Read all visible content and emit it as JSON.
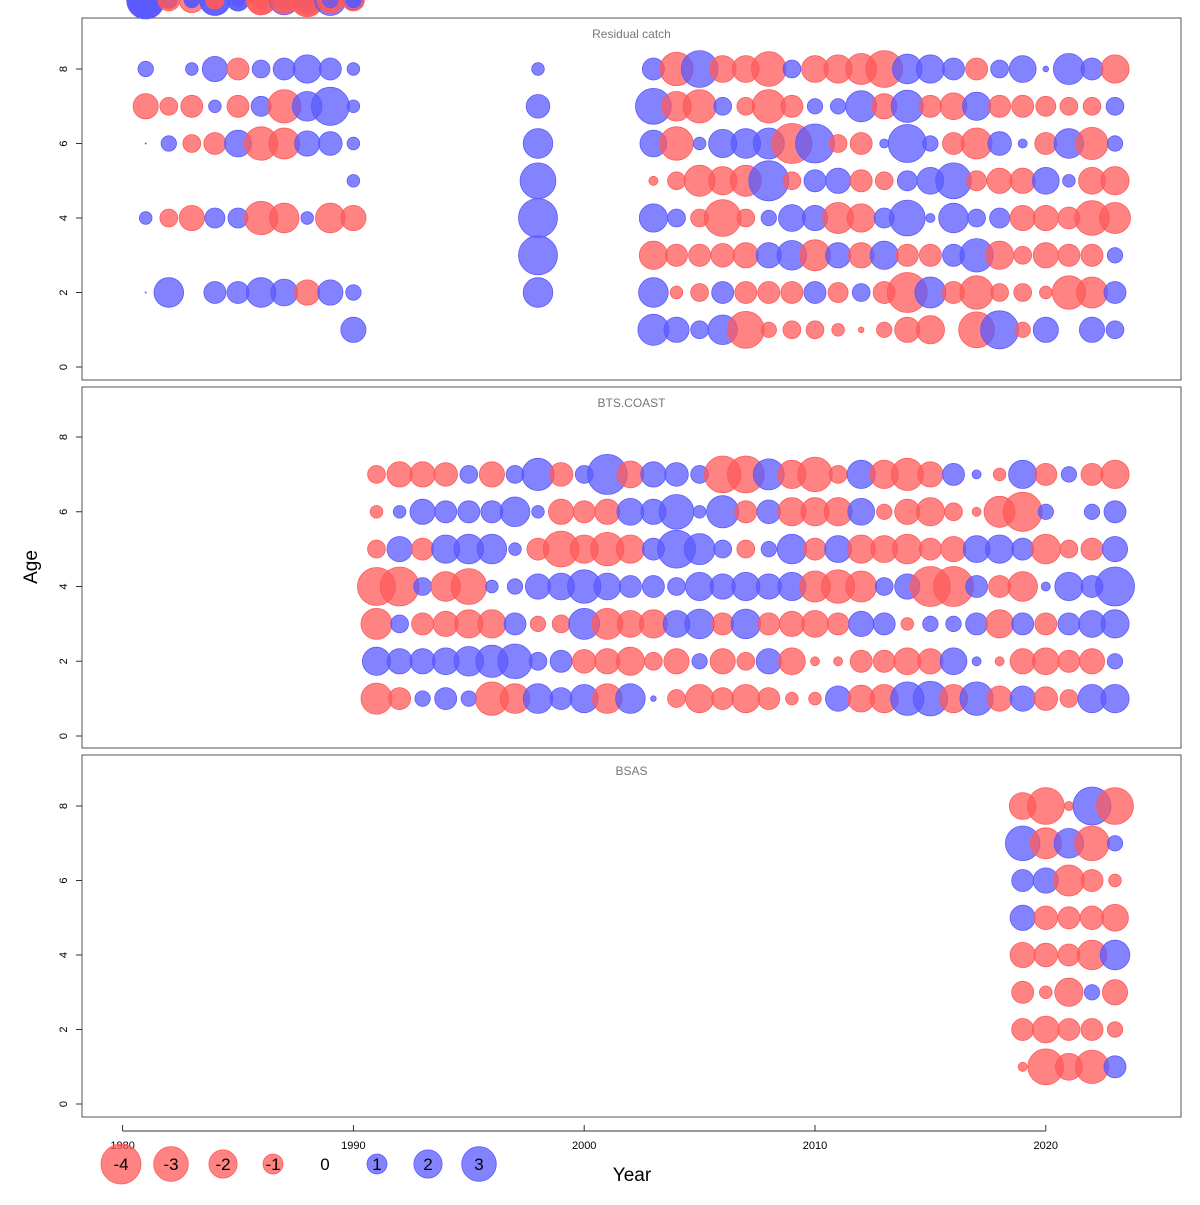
{
  "chart_data": {
    "type": "scatter",
    "xlabel": "Year",
    "ylabel": "Age",
    "xlim": [
      1980,
      2023
    ],
    "ylim": [
      0,
      8
    ],
    "x_ticks": [
      1980,
      1990,
      2000,
      2010,
      2020
    ],
    "y_ticks": [
      0,
      2,
      4,
      6,
      8
    ],
    "colors": {
      "positive": "#5a5aff",
      "negative": "#ff5a5a"
    },
    "legend": {
      "placement": "bottom-left",
      "values": [
        -4,
        -3,
        -2,
        -1,
        0,
        1,
        2,
        3
      ],
      "labels": [
        "-4",
        "-3",
        "-2",
        "-1",
        "0",
        "1",
        "2",
        "3"
      ]
    },
    "panels": [
      {
        "title": "Residual catch",
        "ages": [
          1,
          2,
          3,
          4,
          5,
          6,
          7,
          8
        ],
        "years": [
          1981,
          1982,
          1983,
          1984,
          1985,
          1986,
          1987,
          1988,
          1989,
          1990,
          1998,
          2003,
          2004,
          2005,
          2006,
          2007,
          2008,
          2009,
          2010,
          2011,
          2012,
          2013,
          2014,
          2015,
          2016,
          2017,
          2018,
          2019,
          2020,
          2021,
          2022,
          2023
        ],
        "residuals": [
          [
            null,
            0,
            null,
            0.1,
            null,
            0,
            -0.4,
            0.15,
            0.55,
            0.8,
            0.9,
            0.85
          ],
          [
            null,
            0.55,
            null,
            -0.2,
            null,
            0.15,
            -0.2,
            null,
            -0.2,
            -0.2,
            0.15,
            -0.3
          ],
          [
            null,
            null,
            null,
            -0.4,
            null,
            -0.2,
            -0.3,
            0.1,
            0.15,
            -0.4,
            0.1,
            0.15
          ],
          [
            null,
            0.3,
            null,
            0.25,
            null,
            -0.3,
            0.1,
            0.4,
            0.6,
            0.55,
            -0.2,
            -0.2
          ],
          [
            null,
            0.3,
            null,
            0.25,
            null,
            0.45,
            -0.3,
            -0.3,
            0.1,
            0.3,
            0.3,
            0.1
          ],
          [
            null,
            0.55,
            null,
            -0.7,
            null,
            -0.7,
            0.25,
            0.2,
            0.1,
            -0.55,
            -0.55,
            -0.2
          ],
          [
            null,
            0.45,
            null,
            -0.55,
            null,
            -0.6,
            -0.7,
            0.3,
            0.15,
            0.55,
            -0.5,
            -0.3
          ],
          [
            null,
            -0.4,
            null,
            0.1,
            null,
            0.4,
            0.55,
            0.5,
            0.15,
            0.45,
            -0.7,
            -0.6
          ],
          [
            null,
            0.4,
            null,
            -0.55,
            null,
            0.35,
            0.9,
            0.3,
            0.6,
            -0.45,
            -0.3,
            0.15
          ],
          [
            0.4,
            0.15,
            null,
            -0.4,
            0.1,
            0.1,
            0.1,
            0.1,
            0.25,
            -0.3,
            0.15,
            0.15
          ],
          [
            null,
            0.55,
            0.95,
            0.95,
            0.8,
            0.55,
            0.35,
            0.1,
            null,
            null,
            null,
            null
          ],
          [
            0.6,
            0.55,
            -0.5,
            0.5,
            -0.05,
            0.45,
            0.8,
            0.3,
            null,
            null,
            null,
            null
          ],
          [
            0.4,
            -0.1,
            -0.3,
            0.2,
            -0.2,
            -0.7,
            -0.55,
            -0.7,
            null,
            null,
            null,
            null
          ],
          [
            0.2,
            -0.2,
            -0.3,
            -0.2,
            -0.6,
            0.1,
            -0.7,
            0.85,
            null,
            null,
            null,
            null
          ],
          [
            0.55,
            0.3,
            -0.35,
            -0.85,
            -0.5,
            0.5,
            0.2,
            -0.45,
            null,
            null,
            null,
            null
          ],
          [
            -0.85,
            -0.3,
            -0.4,
            -0.2,
            -0.6,
            0.55,
            -0.2,
            -0.45,
            null,
            null,
            null,
            null
          ],
          [
            -0.15,
            -0.3,
            0.4,
            0.15,
            1.0,
            0.6,
            -0.7,
            -0.75,
            null,
            null,
            null,
            null
          ],
          [
            -0.2,
            -0.3,
            0.55,
            0.45,
            -0.2,
            -1.0,
            -0.3,
            0.2,
            null,
            null,
            null,
            null
          ],
          [
            -0.2,
            0.3,
            -0.6,
            0.4,
            0.3,
            0.95,
            0.15,
            -0.45,
            null,
            null,
            null,
            null
          ],
          [
            -0.1,
            -0.25,
            0.4,
            -0.6,
            0.4,
            -0.2,
            0.15,
            -0.5,
            null,
            null,
            null,
            null
          ],
          [
            -0.02,
            0.2,
            -0.4,
            -0.5,
            -0.3,
            -0.3,
            0.6,
            -0.6,
            null,
            null,
            null,
            null
          ],
          [
            -0.15,
            -0.3,
            0.5,
            0.25,
            -0.2,
            0.05,
            -0.4,
            -0.85,
            null,
            null,
            null,
            null
          ],
          [
            -0.4,
            -1.0,
            -0.3,
            0.8,
            0.25,
            0.9,
            0.65,
            0.55,
            null,
            null,
            null,
            null
          ],
          [
            -0.5,
            0.6,
            -0.3,
            0.05,
            0.45,
            0.15,
            -0.3,
            0.5,
            null,
            null,
            null,
            null
          ],
          [
            null,
            -0.3,
            0.3,
            0.55,
            0.8,
            -0.3,
            -0.45,
            0.3,
            null,
            null,
            null,
            null
          ],
          [
            -0.8,
            -0.7,
            0.7,
            0.2,
            -0.25,
            -0.6,
            0.5,
            -0.3,
            null,
            null,
            null,
            null
          ],
          [
            0.9,
            -0.2,
            -0.5,
            0.25,
            -0.4,
            0.35,
            -0.3,
            0.2,
            null,
            null,
            null,
            null
          ],
          [
            -0.15,
            -0.2,
            -0.2,
            -0.4,
            -0.4,
            0.05,
            -0.3,
            0.45,
            null,
            null,
            null,
            null
          ],
          [
            0.4,
            -0.1,
            -0.4,
            -0.4,
            0.45,
            -0.3,
            -0.25,
            0.02,
            null,
            null,
            null,
            null
          ],
          [
            null,
            -0.7,
            -0.3,
            -0.3,
            0.1,
            0.55,
            -0.2,
            0.6,
            null,
            null,
            null,
            null
          ],
          [
            0.4,
            -0.6,
            -0.3,
            -0.75,
            -0.45,
            -0.65,
            -0.2,
            0.3,
            null,
            null,
            null,
            null
          ],
          [
            0.2,
            0.3,
            0.15,
            -0.6,
            -0.5,
            0.15,
            0.2,
            -0.5,
            null,
            null,
            null,
            null
          ]
        ]
      },
      {
        "title": "BTS.COAST",
        "ages": [
          1,
          2,
          3,
          4,
          5,
          6,
          7
        ],
        "years": [
          1991,
          1992,
          1993,
          1994,
          1995,
          1996,
          1997,
          1998,
          1999,
          2000,
          2001,
          2002,
          2003,
          2004,
          2005,
          2006,
          2007,
          2008,
          2009,
          2010,
          2011,
          2012,
          2013,
          2014,
          2015,
          2016,
          2017,
          2018,
          2019,
          2020,
          2021,
          2022,
          2023
        ],
        "residuals": [
          [
            -0.6,
            0.5,
            -0.6,
            -0.9,
            -0.2,
            -0.1,
            -0.2
          ],
          [
            -0.3,
            0.4,
            0.2,
            -0.95,
            0.4,
            0.1,
            -0.4
          ],
          [
            0.15,
            0.4,
            -0.3,
            0.2,
            -0.3,
            0.4,
            -0.4
          ],
          [
            0.3,
            0.45,
            -0.4,
            -0.55,
            0.5,
            0.3,
            -0.35
          ],
          [
            0.15,
            0.55,
            -0.5,
            -0.8,
            0.55,
            0.3,
            0.2
          ],
          [
            -0.7,
            0.65,
            -0.5,
            0.1,
            0.55,
            0.3,
            -0.4
          ],
          [
            -0.55,
            0.75,
            0.3,
            0.15,
            0.1,
            0.55,
            0.2
          ],
          [
            0.55,
            0.2,
            -0.15,
            0.4,
            -0.3,
            0.1,
            0.65
          ],
          [
            0.3,
            0.3,
            -0.2,
            0.45,
            -0.8,
            -0.4,
            -0.35
          ],
          [
            0.5,
            -0.35,
            0.6,
            0.7,
            -0.5,
            -0.3,
            0.2
          ],
          [
            -0.55,
            -0.4,
            -0.6,
            0.45,
            -0.7,
            -0.4,
            1.0
          ],
          [
            0.55,
            -0.5,
            -0.45,
            0.3,
            -0.5,
            0.45,
            -0.45
          ],
          [
            0.02,
            -0.2,
            -0.5,
            0.3,
            0.3,
            0.4,
            0.4
          ],
          [
            -0.2,
            -0.4,
            0.45,
            0.2,
            0.9,
            0.75,
            0.35
          ],
          [
            -0.5,
            0.15,
            0.55,
            0.5,
            0.6,
            0.1,
            0.2
          ],
          [
            -0.3,
            -0.4,
            -0.3,
            0.4,
            0.2,
            0.65,
            -0.85
          ],
          [
            -0.5,
            -0.2,
            0.55,
            0.5,
            -0.2,
            -0.3,
            -0.85
          ],
          [
            -0.3,
            0.4,
            -0.3,
            0.4,
            0.15,
            0.35,
            0.6
          ],
          [
            -0.1,
            -0.45,
            -0.4,
            0.5,
            0.55,
            -0.5,
            -0.5
          ],
          [
            -0.1,
            -0.05,
            -0.45,
            -0.6,
            -0.3,
            -0.5,
            -0.75
          ],
          [
            0.4,
            -0.05,
            -0.3,
            -0.7,
            0.45,
            -0.5,
            -0.2
          ],
          [
            -0.45,
            -0.3,
            0.4,
            -0.6,
            -0.5,
            0.45,
            0.5
          ],
          [
            -0.5,
            -0.3,
            0.3,
            0.2,
            -0.45,
            -0.15,
            -0.5
          ],
          [
            0.7,
            -0.45,
            -0.1,
            0.4,
            -0.55,
            -0.4,
            -0.65
          ],
          [
            0.75,
            -0.4,
            0.15,
            -1.0,
            -0.3,
            -0.5,
            -0.4
          ],
          [
            -0.5,
            0.45,
            0.15,
            -1.0,
            -0.4,
            -0.2,
            0.3
          ],
          [
            0.7,
            0.05,
            0.3,
            0.3,
            0.45,
            -0.05,
            0.05
          ],
          [
            -0.4,
            -0.05,
            -0.5,
            -0.3,
            0.5,
            -0.6,
            -0.1
          ],
          [
            0.4,
            -0.4,
            0.3,
            -0.55,
            0.3,
            -0.95,
            0.5
          ],
          [
            -0.35,
            -0.45,
            -0.3,
            0.05,
            -0.55,
            0.15,
            -0.3
          ],
          [
            -0.2,
            -0.3,
            0.3,
            0.5,
            -0.2,
            null,
            0.15
          ],
          [
            0.5,
            -0.4,
            0.45,
            0.3,
            -0.3,
            0.15,
            -0.3
          ],
          [
            0.5,
            0.15,
            0.5,
            0.95,
            0.4,
            0.3,
            -0.5
          ]
        ]
      },
      {
        "title": "BSAS",
        "ages": [
          1,
          2,
          3,
          4,
          5,
          6,
          7,
          8
        ],
        "years": [
          2019,
          2020,
          2021,
          2022,
          2023
        ],
        "residuals": [
          [
            -0.05,
            -0.3,
            -0.3,
            -0.4,
            0.4,
            0.3,
            0.75,
            -0.45
          ],
          [
            -0.8,
            -0.45,
            -0.1,
            -0.35,
            -0.35,
            0.4,
            -0.6,
            -0.85
          ],
          [
            -0.45,
            -0.3,
            -0.5,
            -0.3,
            -0.3,
            -0.6,
            0.55,
            -0.05
          ],
          [
            -0.7,
            -0.3,
            0.15,
            -0.55,
            -0.35,
            -0.3,
            -0.75,
            0.9
          ],
          [
            0.3,
            -0.15,
            -0.4,
            0.55,
            -0.45,
            -0.1,
            0.15,
            -0.85
          ]
        ]
      }
    ]
  }
}
